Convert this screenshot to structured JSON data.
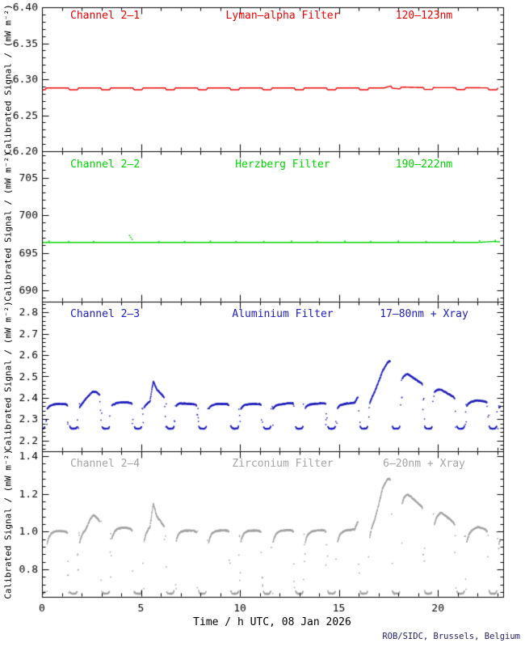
{
  "page": {
    "background": "#ffffff"
  },
  "y_axis_label": "Calibrated Signal / (mW m⁻²)",
  "x_axis": {
    "title": "Time / h UTC, 08 Jan 2026",
    "range": [
      0,
      23.3
    ],
    "major_ticks": [
      0,
      5,
      10,
      15,
      20
    ],
    "tick_labels": [
      "0",
      "5",
      "10",
      "15",
      "20"
    ],
    "minor_step": 1
  },
  "footer": {
    "text": "ROB/SIDC, Brussels, Belgium",
    "color": "#222266"
  },
  "eclipses": {
    "comment": "orbital eclipse dips common to all channels",
    "centers": [
      -0.04,
      1.59,
      3.22,
      4.85,
      6.48,
      8.11,
      9.74,
      11.37,
      13.0,
      14.63,
      16.26,
      17.89,
      19.52,
      21.15,
      22.78
    ],
    "period_h": 1.63,
    "half_width": 0.3,
    "floor_half": 0.19
  },
  "chart_data": [
    {
      "type": "line",
      "channel": "Channel 2–1",
      "filter": "Lyman–alpha Filter",
      "band": "120–123nm",
      "color": "#ee0000",
      "ylim": [
        6.2,
        6.4
      ],
      "yticks": [
        6.2,
        6.25,
        6.3,
        6.35,
        6.4
      ],
      "ytick_labels": [
        "6.20",
        "6.25",
        "6.30",
        "6.35",
        "6.40"
      ],
      "minor_step": 0.01,
      "quiet_level": 6.288,
      "dip_depth": 0.0026,
      "t_end": 23.05,
      "envelope": [
        [
          0,
          6.288
        ],
        [
          17.3,
          6.288
        ],
        [
          17.6,
          6.2905
        ],
        [
          18.1,
          6.2892
        ],
        [
          19.0,
          6.2885
        ],
        [
          23.1,
          6.288
        ]
      ]
    },
    {
      "type": "line",
      "channel": "Channel 2–2",
      "filter": "Herzberg Filter",
      "band": "190–222nm",
      "color": "#00d400",
      "ylim": [
        688.5,
        708.5
      ],
      "yticks": [
        690,
        695,
        700,
        705
      ],
      "ytick_labels": [
        "690",
        "695",
        "700",
        "705"
      ],
      "minor_step": 1,
      "quiet_level": 696.38,
      "dip_depth": 0,
      "t_end": 23.15,
      "envelope": [
        [
          0,
          696.38
        ],
        [
          22.0,
          696.38
        ],
        [
          22.5,
          696.45
        ],
        [
          22.8,
          696.5
        ],
        [
          23.1,
          696.45
        ]
      ],
      "specks": [
        [
          0.35,
          696.55
        ],
        [
          1.35,
          696.5
        ],
        [
          2.6,
          696.5
        ],
        [
          4.42,
          697.3
        ],
        [
          4.48,
          697.05
        ],
        [
          4.55,
          696.8
        ],
        [
          5.9,
          696.5
        ],
        [
          7.2,
          696.5
        ],
        [
          8.5,
          696.55
        ],
        [
          9.8,
          696.5
        ],
        [
          11.2,
          696.5
        ],
        [
          12.6,
          696.55
        ],
        [
          13.9,
          696.5
        ],
        [
          15.3,
          696.55
        ],
        [
          16.6,
          696.5
        ],
        [
          18.0,
          696.55
        ],
        [
          19.4,
          696.5
        ],
        [
          20.8,
          696.55
        ],
        [
          22.1,
          696.6
        ],
        [
          22.9,
          696.65
        ]
      ]
    },
    {
      "type": "scatter",
      "channel": "Channel 2–3",
      "filter": "Aluminium Filter",
      "band": "17–80nm + Xray",
      "color": "#2020bb",
      "ylim": [
        2.15,
        2.85
      ],
      "yticks": [
        2.2,
        2.3,
        2.4,
        2.5,
        2.6,
        2.7,
        2.8
      ],
      "ytick_labels": [
        "2.2",
        "2.3",
        "2.4",
        "2.5",
        "2.6",
        "2.7",
        "2.8"
      ],
      "minor_step": 0.02,
      "quiet_level": 2.37,
      "floor": 2.256,
      "floor_lift": 0.012,
      "floor_noise": 0.004,
      "recovery": 0.022,
      "pre_droop": 0.006,
      "noise": 0.0055,
      "t_end": 23.15,
      "envelope": [
        [
          0,
          2.368
        ],
        [
          0.8,
          2.372
        ],
        [
          1.5,
          2.37
        ],
        [
          2.0,
          2.378
        ],
        [
          2.3,
          2.405
        ],
        [
          2.55,
          2.428
        ],
        [
          2.7,
          2.43
        ],
        [
          2.95,
          2.415
        ],
        [
          3.2,
          2.405
        ],
        [
          3.65,
          2.378
        ],
        [
          4.15,
          2.38
        ],
        [
          4.65,
          2.376
        ],
        [
          5.1,
          2.372
        ],
        [
          5.45,
          2.385
        ],
        [
          5.62,
          2.478
        ],
        [
          5.8,
          2.44
        ],
        [
          6.1,
          2.41
        ],
        [
          6.55,
          2.39
        ],
        [
          7.1,
          2.375
        ],
        [
          8.0,
          2.368
        ],
        [
          9.0,
          2.372
        ],
        [
          10.0,
          2.37
        ],
        [
          11.0,
          2.372
        ],
        [
          12.0,
          2.37
        ],
        [
          12.8,
          2.378
        ],
        [
          13.6,
          2.372
        ],
        [
          14.4,
          2.376
        ],
        [
          15.2,
          2.372
        ],
        [
          15.8,
          2.378
        ],
        [
          15.97,
          2.41
        ],
        [
          16.1,
          2.39
        ],
        [
          16.55,
          2.395
        ],
        [
          16.8,
          2.43
        ],
        [
          17.0,
          2.475
        ],
        [
          17.2,
          2.525
        ],
        [
          17.45,
          2.565
        ],
        [
          17.65,
          2.583
        ],
        [
          17.9,
          2.578
        ],
        [
          18.2,
          2.51
        ],
        [
          18.45,
          2.515
        ],
        [
          19.0,
          2.478
        ],
        [
          19.35,
          2.462
        ],
        [
          19.85,
          2.447
        ],
        [
          20.15,
          2.44
        ],
        [
          20.5,
          2.42
        ],
        [
          21.0,
          2.395
        ],
        [
          21.45,
          2.382
        ],
        [
          22.0,
          2.388
        ],
        [
          22.35,
          2.384
        ],
        [
          22.7,
          2.38
        ],
        [
          23.2,
          2.372
        ]
      ]
    },
    {
      "type": "scatter",
      "channel": "Channel 2–4",
      "filter": "Zirconium Filter",
      "band": "6–20nm + Xray",
      "color": "#a3a3a3",
      "ylim": [
        0.655,
        1.425
      ],
      "yticks": [
        0.8,
        1.0,
        1.2,
        1.4
      ],
      "ytick_labels": [
        "0.8",
        "1.0",
        "1.2",
        "1.4"
      ],
      "minor_step": 0.04,
      "quiet_level": 1.0,
      "floor": 0.672,
      "floor_lift": 0.015,
      "floor_noise": 0.006,
      "recovery": 0.065,
      "pre_droop": 0.012,
      "noise": 0.007,
      "t_end": 23.15,
      "envelope": [
        [
          0,
          1.0
        ],
        [
          0.8,
          1.005
        ],
        [
          1.4,
          1.0
        ],
        [
          1.9,
          1.0
        ],
        [
          2.2,
          1.015
        ],
        [
          2.45,
          1.07
        ],
        [
          2.6,
          1.088
        ],
        [
          2.9,
          1.062
        ],
        [
          3.15,
          1.05
        ],
        [
          3.6,
          1.02
        ],
        [
          4.1,
          1.022
        ],
        [
          4.6,
          1.015
        ],
        [
          5.1,
          1.005
        ],
        [
          5.45,
          1.03
        ],
        [
          5.62,
          1.15
        ],
        [
          5.8,
          1.08
        ],
        [
          6.1,
          1.04
        ],
        [
          6.55,
          1.02
        ],
        [
          7.1,
          1.008
        ],
        [
          8.0,
          1.003
        ],
        [
          9.0,
          1.007
        ],
        [
          10.0,
          1.008
        ],
        [
          11.0,
          1.005
        ],
        [
          12.0,
          1.006
        ],
        [
          12.8,
          1.01
        ],
        [
          13.6,
          1.005
        ],
        [
          14.4,
          1.01
        ],
        [
          15.2,
          1.007
        ],
        [
          15.8,
          1.012
        ],
        [
          15.97,
          1.065
        ],
        [
          16.1,
          1.03
        ],
        [
          16.55,
          1.035
        ],
        [
          16.8,
          1.07
        ],
        [
          17.0,
          1.14
        ],
        [
          17.2,
          1.23
        ],
        [
          17.45,
          1.278
        ],
        [
          17.65,
          1.29
        ],
        [
          17.9,
          1.285
        ],
        [
          18.2,
          1.21
        ],
        [
          18.45,
          1.205
        ],
        [
          19.0,
          1.15
        ],
        [
          19.35,
          1.125
        ],
        [
          19.85,
          1.1
        ],
        [
          20.15,
          1.105
        ],
        [
          20.5,
          1.075
        ],
        [
          21.0,
          1.032
        ],
        [
          21.45,
          1.005
        ],
        [
          22.0,
          1.025
        ],
        [
          22.35,
          1.015
        ],
        [
          22.7,
          1.005
        ],
        [
          23.2,
          0.995
        ]
      ]
    }
  ]
}
